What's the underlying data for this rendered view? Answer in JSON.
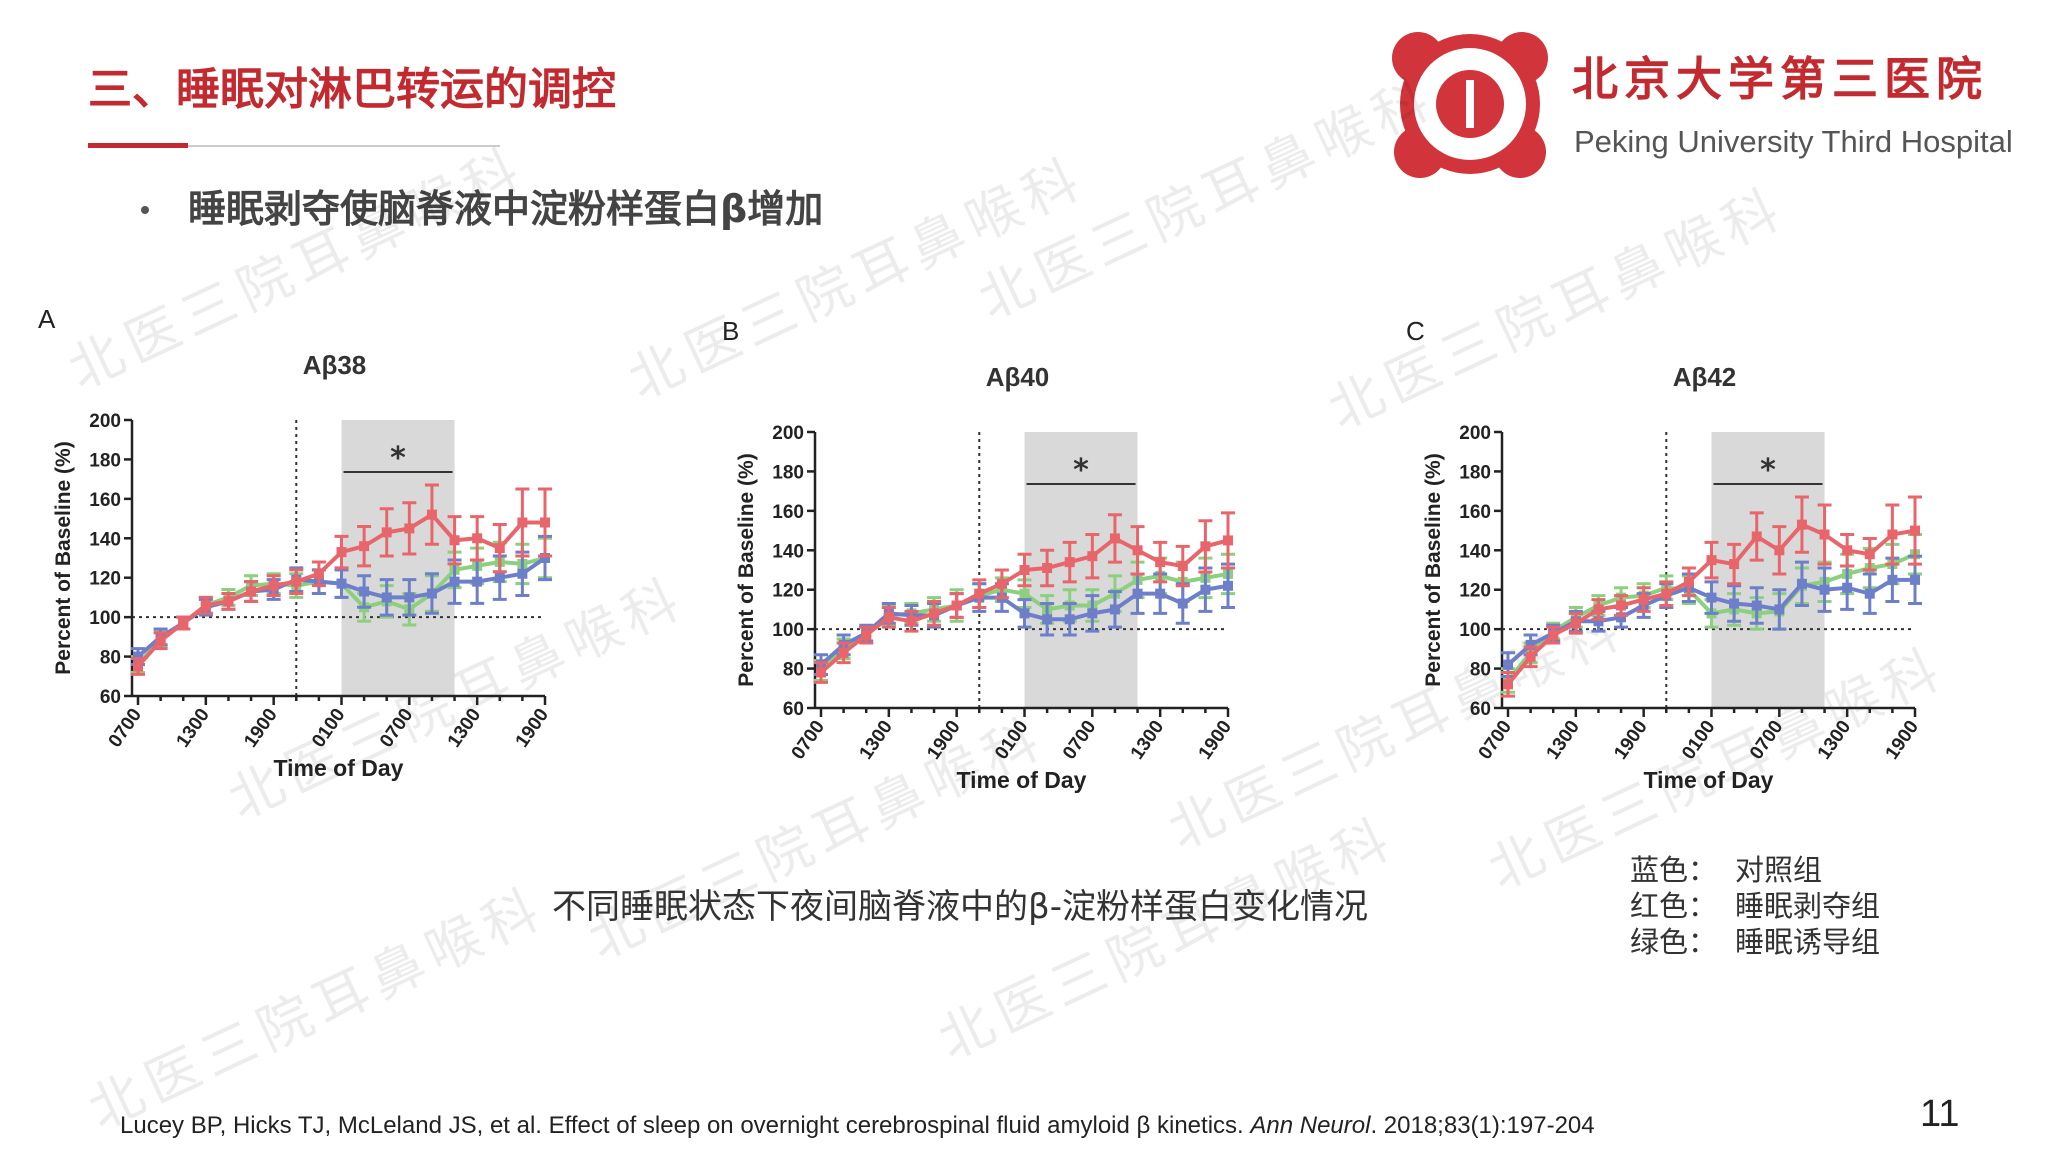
{
  "header": {
    "title": "三、睡眠对淋巴转运的调控",
    "bullet": "睡眠剥夺使脑脊液中淀粉样蛋白β增加",
    "hospital_cn": "北京大学第三医院",
    "hospital_en": "Peking University Third Hospital"
  },
  "watermark": "北医三院耳鼻喉科",
  "chart_data": [
    {
      "type": "line",
      "panel": "A",
      "title": "Aβ38",
      "x_label": "Time of Day",
      "y_label": "Percent of Baseline (%)",
      "annotation": "*",
      "categories": [
        "0700",
        null,
        null,
        "1300",
        null,
        null,
        "1900",
        null,
        null,
        "0100",
        null,
        null,
        "0700",
        null,
        null,
        "1300",
        null,
        null,
        "1900"
      ],
      "ylim": [
        60,
        200
      ],
      "yticks": [
        60,
        80,
        100,
        120,
        140,
        160,
        180,
        200
      ],
      "reference_line": 100,
      "series": [
        {
          "color": "#8ccf7e",
          "values": [
            76,
            89,
            97,
            106,
            110,
            116,
            117,
            116,
            118,
            117,
            105,
            108,
            104,
            112,
            124,
            126,
            128,
            127,
            130
          ],
          "errors": [
            4,
            4,
            3,
            4,
            4,
            5,
            5,
            6,
            6,
            7,
            7,
            8,
            8,
            9,
            9,
            9,
            10,
            10,
            10
          ]
        },
        {
          "color": "#6e7fca",
          "values": [
            80,
            90,
            97,
            105,
            108,
            113,
            114,
            119,
            118,
            117,
            113,
            110,
            110,
            112,
            118,
            118,
            120,
            122,
            130
          ],
          "errors": [
            4,
            4,
            3,
            4,
            4,
            5,
            5,
            6,
            6,
            7,
            8,
            9,
            9,
            10,
            11,
            11,
            11,
            11,
            11
          ]
        },
        {
          "color": "#e8666b",
          "values": [
            75,
            88,
            97,
            106,
            108,
            113,
            116,
            118,
            122,
            133,
            136,
            143,
            145,
            152,
            139,
            140,
            135,
            148,
            148
          ],
          "errors": [
            4,
            4,
            3,
            4,
            4,
            5,
            5,
            6,
            6,
            8,
            10,
            12,
            13,
            15,
            12,
            11,
            12,
            17,
            17
          ]
        }
      ]
    },
    {
      "type": "line",
      "panel": "B",
      "title": "Aβ40",
      "x_label": "Time of Day",
      "y_label": "Percent of Baseline (%)",
      "annotation": "*",
      "categories": [
        "0700",
        null,
        null,
        "1300",
        null,
        null,
        "1900",
        null,
        null,
        "0100",
        null,
        null,
        "0700",
        null,
        null,
        "1300",
        null,
        null,
        "1900"
      ],
      "ylim": [
        60,
        200
      ],
      "yticks": [
        60,
        80,
        100,
        120,
        140,
        160,
        180,
        200
      ],
      "reference_line": 100,
      "series": [
        {
          "color": "#8ccf7e",
          "values": [
            79,
            90,
            97,
            107,
            108,
            110,
            112,
            117,
            120,
            118,
            110,
            112,
            112,
            118,
            125,
            127,
            124,
            126,
            128
          ],
          "errors": [
            5,
            5,
            4,
            5,
            5,
            6,
            8,
            6,
            6,
            7,
            7,
            8,
            8,
            9,
            9,
            9,
            10,
            10,
            10
          ]
        },
        {
          "color": "#6e7fca",
          "values": [
            82,
            92,
            98,
            108,
            107,
            107,
            112,
            116,
            116,
            108,
            105,
            105,
            108,
            110,
            118,
            118,
            113,
            120,
            122
          ],
          "errors": [
            5,
            5,
            4,
            5,
            5,
            6,
            6,
            7,
            7,
            7,
            8,
            8,
            9,
            9,
            10,
            10,
            10,
            11,
            11
          ]
        },
        {
          "color": "#e8666b",
          "values": [
            78,
            88,
            97,
            106,
            104,
            108,
            112,
            118,
            123,
            130,
            131,
            134,
            137,
            146,
            140,
            134,
            132,
            142,
            145
          ],
          "errors": [
            5,
            5,
            4,
            5,
            5,
            6,
            6,
            7,
            7,
            8,
            9,
            10,
            11,
            12,
            12,
            10,
            10,
            13,
            14
          ]
        }
      ]
    },
    {
      "type": "line",
      "panel": "C",
      "title": "Aβ42",
      "x_label": "Time of Day",
      "y_label": "Percent of Baseline (%)",
      "annotation": "*",
      "categories": [
        "0700",
        null,
        null,
        "1300",
        null,
        null,
        "1900",
        null,
        null,
        "0100",
        null,
        null,
        "0700",
        null,
        null,
        "1300",
        null,
        null,
        "1900"
      ],
      "ylim": [
        60,
        200
      ],
      "yticks": [
        60,
        80,
        100,
        120,
        140,
        160,
        180,
        200
      ],
      "reference_line": 100,
      "series": [
        {
          "color": "#8ccf7e",
          "values": [
            74,
            88,
            99,
            106,
            112,
            116,
            117,
            121,
            120,
            108,
            110,
            108,
            109,
            122,
            124,
            128,
            131,
            133,
            138
          ],
          "errors": [
            6,
            5,
            4,
            5,
            5,
            5,
            6,
            6,
            7,
            7,
            8,
            8,
            9,
            9,
            10,
            10,
            10,
            10,
            10
          ]
        },
        {
          "color": "#6e7fca",
          "values": [
            82,
            92,
            98,
            104,
            104,
            106,
            112,
            117,
            121,
            116,
            113,
            112,
            110,
            123,
            120,
            121,
            118,
            125,
            125
          ],
          "errors": [
            6,
            5,
            4,
            5,
            5,
            5,
            6,
            6,
            7,
            8,
            9,
            9,
            10,
            11,
            11,
            11,
            10,
            11,
            12
          ]
        },
        {
          "color": "#e8666b",
          "values": [
            72,
            86,
            97,
            103,
            110,
            112,
            115,
            118,
            124,
            135,
            133,
            147,
            140,
            153,
            148,
            140,
            138,
            148,
            150
          ],
          "errors": [
            6,
            5,
            4,
            5,
            5,
            5,
            6,
            6,
            7,
            9,
            10,
            12,
            12,
            14,
            15,
            8,
            8,
            15,
            17
          ]
        }
      ]
    }
  ],
  "caption": "不同睡眠状态下夜间脑脊液中的β-淀粉样蛋白变化情况",
  "legend": [
    {
      "color_name": "蓝色：",
      "group": "对照组"
    },
    {
      "color_name": "红色：",
      "group": "睡眠剥夺组"
    },
    {
      "color_name": "绿色：",
      "group": "睡眠诱导组"
    }
  ],
  "reference": {
    "authors_title": "Lucey BP, Hicks TJ, McLeland JS, et al. Effect of sleep on overnight cerebrospinal fluid amyloid β kinetics. ",
    "journal": "Ann Neurol",
    "details": ". 2018;83(1):197-204"
  },
  "page_number": "11"
}
